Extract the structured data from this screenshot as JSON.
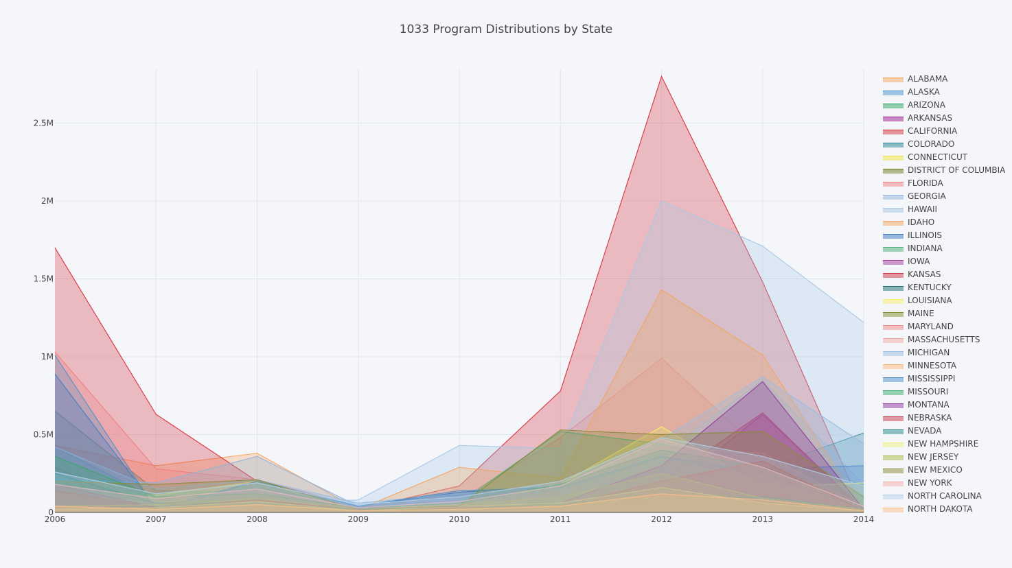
{
  "chart_data": {
    "type": "area",
    "title": "1033 Program Distributions by State",
    "xlabel": "",
    "ylabel": "",
    "x": [
      2006,
      2007,
      2008,
      2009,
      2010,
      2011,
      2012,
      2013,
      2014
    ],
    "xlim": [
      2006,
      2014
    ],
    "ylim": [
      0,
      2850000
    ],
    "y_ticks": [
      0,
      500000,
      1000000,
      1500000,
      2000000,
      2500000
    ],
    "y_tick_labels": [
      "0",
      "0.5M",
      "1M",
      "1.5M",
      "2M",
      "2.5M"
    ],
    "x_tick_labels": [
      "2006",
      "2007",
      "2008",
      "2009",
      "2010",
      "2011",
      "2012",
      "2013",
      "2014"
    ],
    "grid": true,
    "legend_position": "right",
    "series": [
      {
        "name": "ALABAMA",
        "color": "#f7a35c",
        "values": [
          430000,
          300000,
          380000,
          20000,
          40000,
          170000,
          500000,
          170000,
          180000
        ]
      },
      {
        "name": "ALASKA",
        "color": "#4a90c8",
        "values": [
          60000,
          20000,
          60000,
          30000,
          20000,
          40000,
          60000,
          90000,
          20000
        ]
      },
      {
        "name": "ARIZONA",
        "color": "#2ca25f",
        "values": [
          650000,
          140000,
          130000,
          20000,
          40000,
          170000,
          420000,
          290000,
          180000
        ]
      },
      {
        "name": "ARKANSAS",
        "color": "#9b1b8a",
        "values": [
          290000,
          20000,
          80000,
          40000,
          20000,
          40000,
          190000,
          630000,
          0
        ]
      },
      {
        "name": "CALIFORNIA",
        "color": "#d62d3a",
        "values": [
          1700000,
          630000,
          200000,
          20000,
          170000,
          780000,
          2800000,
          1480000,
          0
        ]
      },
      {
        "name": "COLORADO",
        "color": "#1f7f8a",
        "values": [
          420000,
          90000,
          40000,
          30000,
          20000,
          50000,
          70000,
          280000,
          510000
        ]
      },
      {
        "name": "CONNECTICUT",
        "color": "#f0e442",
        "values": [
          30000,
          30000,
          60000,
          10000,
          30000,
          20000,
          60000,
          40000,
          10000
        ]
      },
      {
        "name": "DISTRICT OF COLUMBIA",
        "color": "#6b7a1f",
        "values": [
          20000,
          20000,
          40000,
          10000,
          10000,
          20000,
          40000,
          30000,
          10000
        ]
      },
      {
        "name": "FLORIDA",
        "color": "#f08080",
        "values": [
          1030000,
          280000,
          210000,
          40000,
          80000,
          480000,
          990000,
          390000,
          10000
        ]
      },
      {
        "name": "GEORGIA",
        "color": "#8fb3d9",
        "values": [
          210000,
          190000,
          360000,
          40000,
          120000,
          160000,
          370000,
          850000,
          180000
        ]
      },
      {
        "name": "HAWAII",
        "color": "#a6c8e4",
        "values": [
          50000,
          70000,
          60000,
          80000,
          430000,
          410000,
          2000000,
          1710000,
          1220000
        ]
      },
      {
        "name": "IDAHO",
        "color": "#f4a460",
        "values": [
          70000,
          120000,
          200000,
          20000,
          290000,
          220000,
          1430000,
          1010000,
          10000
        ]
      },
      {
        "name": "ILLINOIS",
        "color": "#3c78c4",
        "values": [
          890000,
          30000,
          200000,
          40000,
          130000,
          170000,
          380000,
          280000,
          300000
        ]
      },
      {
        "name": "INDIANA",
        "color": "#4caf73",
        "values": [
          130000,
          120000,
          140000,
          20000,
          60000,
          520000,
          440000,
          300000,
          100000
        ]
      },
      {
        "name": "IOWA",
        "color": "#a43c9a",
        "values": [
          110000,
          20000,
          60000,
          30000,
          30000,
          50000,
          110000,
          630000,
          20000
        ]
      },
      {
        "name": "KANSAS",
        "color": "#cc3344",
        "values": [
          170000,
          10000,
          90000,
          20000,
          20000,
          30000,
          190000,
          640000,
          10000
        ]
      },
      {
        "name": "KENTUCKY",
        "color": "#1a6f6f",
        "values": [
          90000,
          40000,
          40000,
          20000,
          10000,
          40000,
          80000,
          90000,
          20000
        ]
      },
      {
        "name": "LOUISIANA",
        "color": "#f5ee6a",
        "values": [
          20000,
          110000,
          200000,
          10000,
          40000,
          180000,
          550000,
          160000,
          190000
        ]
      },
      {
        "name": "MAINE",
        "color": "#7f8c2a",
        "values": [
          10000,
          20000,
          30000,
          10000,
          20000,
          30000,
          40000,
          40000,
          10000
        ]
      },
      {
        "name": "MARYLAND",
        "color": "#f48c8c",
        "values": [
          150000,
          80000,
          150000,
          20000,
          60000,
          150000,
          420000,
          380000,
          40000
        ]
      },
      {
        "name": "MASSACHUSETTS",
        "color": "#f2a8a0",
        "values": [
          100000,
          40000,
          100000,
          20000,
          30000,
          120000,
          310000,
          230000,
          20000
        ]
      },
      {
        "name": "MICHIGAN",
        "color": "#99bde0",
        "values": [
          420000,
          150000,
          210000,
          60000,
          120000,
          180000,
          470000,
          870000,
          440000
        ]
      },
      {
        "name": "MINNESOTA",
        "color": "#fbb574",
        "values": [
          120000,
          60000,
          120000,
          20000,
          50000,
          130000,
          340000,
          200000,
          20000
        ]
      },
      {
        "name": "MISSISSIPPI",
        "color": "#4f8fc8",
        "values": [
          1010000,
          20000,
          200000,
          40000,
          140000,
          160000,
          360000,
          260000,
          20000
        ]
      },
      {
        "name": "MISSOURI",
        "color": "#3aa868",
        "values": [
          360000,
          100000,
          120000,
          30000,
          60000,
          180000,
          400000,
          290000,
          30000
        ]
      },
      {
        "name": "MONTANA",
        "color": "#8e3a9c",
        "values": [
          180000,
          30000,
          80000,
          20000,
          40000,
          60000,
          300000,
          840000,
          20000
        ]
      },
      {
        "name": "NEBRASKA",
        "color": "#c83c4a",
        "values": [
          140000,
          30000,
          80000,
          20000,
          30000,
          40000,
          200000,
          330000,
          10000
        ]
      },
      {
        "name": "NEVADA",
        "color": "#2a8a8a",
        "values": [
          250000,
          60000,
          60000,
          20000,
          20000,
          60000,
          90000,
          100000,
          20000
        ]
      },
      {
        "name": "NEW HAMPSHIRE",
        "color": "#eef27a",
        "values": [
          20000,
          30000,
          70000,
          10000,
          40000,
          60000,
          160000,
          60000,
          10000
        ]
      },
      {
        "name": "NEW JERSEY",
        "color": "#a8b84a",
        "values": [
          40000,
          50000,
          90000,
          20000,
          50000,
          100000,
          250000,
          90000,
          20000
        ]
      },
      {
        "name": "NEW MEXICO",
        "color": "#8c8a3a",
        "values": [
          200000,
          180000,
          210000,
          20000,
          40000,
          530000,
          500000,
          520000,
          100000
        ]
      },
      {
        "name": "NEW YORK",
        "color": "#f4b0ac",
        "values": [
          180000,
          90000,
          150000,
          30000,
          70000,
          170000,
          470000,
          290000,
          40000
        ]
      },
      {
        "name": "NORTH CAROLINA",
        "color": "#b4cfe8",
        "values": [
          260000,
          120000,
          190000,
          50000,
          100000,
          200000,
          480000,
          360000,
          170000
        ]
      },
      {
        "name": "NORTH DAKOTA",
        "color": "#fbc08a",
        "values": [
          40000,
          20000,
          50000,
          10000,
          20000,
          40000,
          120000,
          80000,
          10000
        ]
      }
    ]
  }
}
